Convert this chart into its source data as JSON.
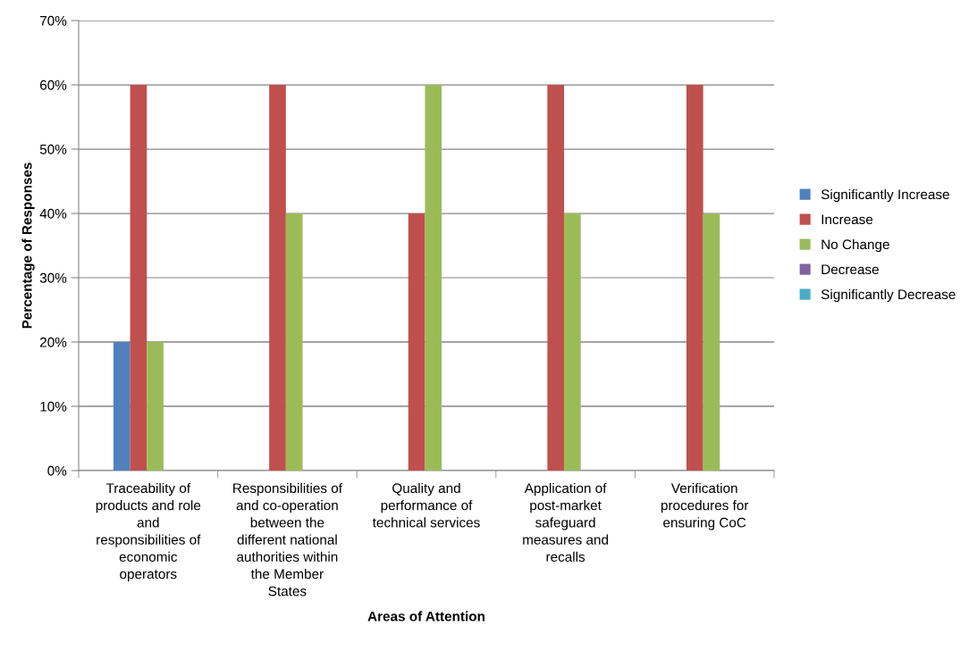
{
  "chart_data": {
    "type": "bar",
    "xlabel": "Areas of Attention",
    "ylabel": "Percentage of Responses",
    "categories": [
      "Traceability of\nproducts and role\nand\nresponsibilities of\neconomic\noperators",
      "Responsibilities of\nand co-operation\nbetween the\ndifferent national\nauthorities within\nthe Member\nStates",
      "Quality and\nperformance of\ntechnical services",
      "Application of\npost-market\nsafeguard\nmeasures and\nrecalls",
      "Verification\nprocedures for\nensuring CoC"
    ],
    "series": [
      {
        "name": "Significantly Increase",
        "color": "#4f81bd",
        "values": [
          20,
          0,
          0,
          0,
          0
        ]
      },
      {
        "name": "Increase",
        "color": "#c0504d",
        "values": [
          60,
          60,
          40,
          60,
          60
        ]
      },
      {
        "name": "No Change",
        "color": "#9bbb59",
        "values": [
          20,
          40,
          60,
          40,
          40
        ]
      },
      {
        "name": "Decrease",
        "color": "#8064a2",
        "values": [
          0,
          0,
          0,
          0,
          0
        ]
      },
      {
        "name": "Significantly Decrease",
        "color": "#4bacc6",
        "values": [
          0,
          0,
          0,
          0,
          0
        ]
      }
    ],
    "ylim": [
      0,
      70
    ],
    "yticks": [
      {
        "value": 0,
        "label": "0%"
      },
      {
        "value": 10,
        "label": "10%"
      },
      {
        "value": 20,
        "label": "20%"
      },
      {
        "value": 30,
        "label": "30%"
      },
      {
        "value": 40,
        "label": "40%"
      },
      {
        "value": 50,
        "label": "50%"
      },
      {
        "value": 60,
        "label": "60%"
      },
      {
        "value": 70,
        "label": "70%"
      }
    ],
    "grid": "y",
    "legend": "right"
  }
}
